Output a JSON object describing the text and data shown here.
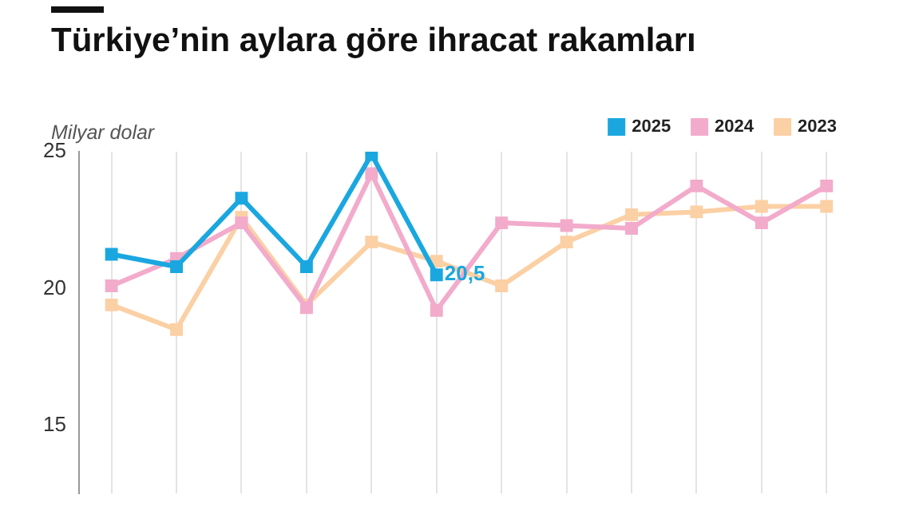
{
  "chart_data": {
    "type": "line",
    "title": "Türkiye’nin aylara göre ihracat rakamları",
    "ylabel": "Milyar dolar",
    "categories": [
      null,
      null,
      null,
      null,
      null,
      null,
      null,
      null,
      null,
      null,
      null,
      null
    ],
    "series": [
      {
        "name": "2023",
        "color": "#fbd0a4",
        "values": [
          19.4,
          18.5,
          22.6,
          19.4,
          21.7,
          21.0,
          20.1,
          21.7,
          22.7,
          22.8,
          23.0,
          23.0
        ]
      },
      {
        "name": "2024",
        "color": "#f2abcb",
        "values": [
          20.1,
          21.1,
          22.4,
          19.3,
          24.2,
          19.2,
          22.4,
          22.3,
          22.2,
          23.75,
          22.4,
          23.75
        ]
      },
      {
        "name": "2025",
        "color": "#1aa7e0",
        "values": [
          21.25,
          20.8,
          23.3,
          20.8,
          24.9,
          20.5,
          null,
          null,
          null,
          null,
          null,
          null
        ],
        "value_labels": [
          null,
          null,
          null,
          null,
          null,
          "20,5",
          null,
          null,
          null,
          null,
          null,
          null
        ]
      }
    ],
    "ylim": [
      12.5,
      25
    ],
    "yticks": [
      15,
      20,
      25
    ],
    "grid": "x",
    "legend": "top right",
    "marker": "square",
    "line_style": "solid",
    "tick_labels": "y"
  }
}
